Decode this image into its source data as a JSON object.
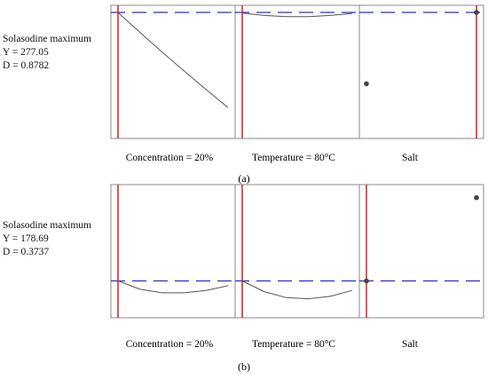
{
  "figure": {
    "panels": [
      {
        "letter": "(a)",
        "response_label": "Solasodine maximum",
        "y_text": "Y = 277.05",
        "d_text": "D = 0.8782",
        "factors": [
          {
            "label": "Concentration = 20%"
          },
          {
            "label": "Temperature = 80°C"
          },
          {
            "label": "Salt"
          }
        ]
      },
      {
        "letter": "(b)",
        "response_label": "Solasodine maximum",
        "y_text": "Y = 178.69",
        "d_text": "D = 0.3737",
        "factors": [
          {
            "label": "Concentration = 20%"
          },
          {
            "label": "Temperature = 80°C"
          },
          {
            "label": "Salt"
          }
        ]
      }
    ]
  },
  "chart_data": [
    {
      "type": "line",
      "subplots": [
        {
          "factor": "Concentration",
          "x": [
            0.0,
            0.1,
            0.2,
            0.3,
            0.4,
            0.5,
            0.6,
            0.7,
            0.8,
            0.9,
            1.0
          ],
          "y": [
            1.0,
            0.915,
            0.832,
            0.749,
            0.668,
            0.588,
            0.508,
            0.43,
            0.353,
            0.276,
            0.2
          ],
          "current_x": 0.0,
          "reference_y": 1.0
        },
        {
          "factor": "Temperature",
          "x": [
            0.0,
            0.2,
            0.4,
            0.6,
            0.8,
            1.0
          ],
          "y": [
            0.995,
            0.975,
            0.965,
            0.965,
            0.975,
            0.992
          ],
          "current_x": 0.0,
          "reference_y": 1.0
        },
        {
          "factor": "Salt",
          "points": [
            {
              "x": 0.0,
              "y": 0.4
            },
            {
              "x": 1.0,
              "y": 1.0
            }
          ],
          "current_x": 1.0,
          "reference_y": 1.0
        }
      ]
    },
    {
      "type": "line",
      "subplots": [
        {
          "factor": "Concentration",
          "x": [
            0.0,
            0.2,
            0.4,
            0.6,
            0.8,
            1.0
          ],
          "y": [
            0.25,
            0.18,
            0.15,
            0.15,
            0.17,
            0.21
          ],
          "current_x": 0.0,
          "reference_y": 0.25
        },
        {
          "factor": "Temperature",
          "x": [
            0.0,
            0.2,
            0.4,
            0.6,
            0.8,
            1.0
          ],
          "y": [
            0.25,
            0.16,
            0.11,
            0.1,
            0.12,
            0.17
          ],
          "current_x": 0.0,
          "reference_y": 0.25
        },
        {
          "factor": "Salt",
          "points": [
            {
              "x": 0.0,
              "y": 0.25
            },
            {
              "x": 1.0,
              "y": 0.95
            }
          ],
          "current_x": 0.0,
          "reference_y": 0.25
        }
      ]
    }
  ]
}
